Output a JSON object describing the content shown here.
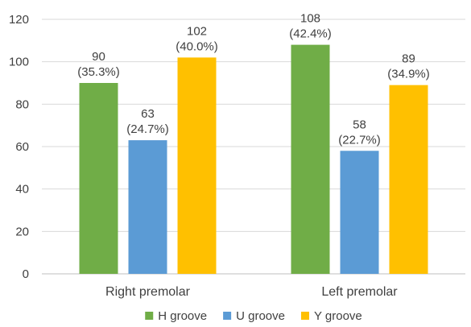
{
  "chart_data": {
    "type": "bar",
    "categories": [
      "Right premolar",
      "Left premolar"
    ],
    "series": [
      {
        "name": "H groove",
        "color": "#70ad47",
        "values": [
          90,
          108
        ],
        "labels": [
          "(35.3%)",
          "(42.4%)"
        ]
      },
      {
        "name": "U groove",
        "color": "#5b9bd5",
        "values": [
          63,
          58
        ],
        "labels": [
          "(24.7%)",
          "(22.7%)"
        ]
      },
      {
        "name": "Y groove",
        "color": "#ffc000",
        "values": [
          102,
          89
        ],
        "labels": [
          "(40.0%)",
          "(34.9%)"
        ]
      }
    ],
    "ylim": [
      0,
      120
    ],
    "yticks": [
      0,
      20,
      40,
      60,
      80,
      100,
      120
    ],
    "grid": true,
    "legend_position": "bottom"
  }
}
